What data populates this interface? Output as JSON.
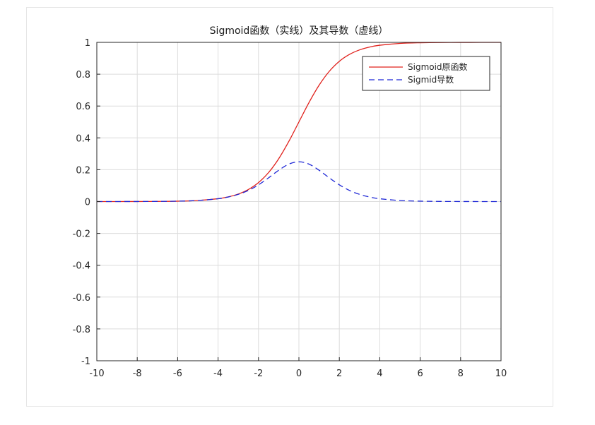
{
  "chart_data": {
    "type": "line",
    "title": "Sigmoid函数（实线）及其导数（虚线）",
    "xlabel": "",
    "ylabel": "",
    "xlim": [
      -10,
      10
    ],
    "ylim": [
      -1,
      1
    ],
    "x_ticks": [
      -10,
      -8,
      -6,
      -4,
      -2,
      0,
      2,
      4,
      6,
      8,
      10
    ],
    "y_ticks": [
      -1,
      -0.8,
      -0.6,
      -0.4,
      -0.2,
      0,
      0.2,
      0.4,
      0.6,
      0.8,
      1
    ],
    "x_tick_labels": [
      "-10",
      "-8",
      "-6",
      "-4",
      "-2",
      "0",
      "2",
      "4",
      "6",
      "8",
      "10"
    ],
    "y_tick_labels": [
      "-1",
      "-0.8",
      "-0.6",
      "-0.4",
      "-0.2",
      "0",
      "0.2",
      "0.4",
      "0.6",
      "0.8",
      "1"
    ],
    "grid": true,
    "legend_position": "top-right",
    "x": [
      -10,
      -9,
      -8,
      -7,
      -6,
      -5,
      -4,
      -3.5,
      -3,
      -2.5,
      -2,
      -1.5,
      -1,
      -0.5,
      0,
      0.5,
      1,
      1.5,
      2,
      2.5,
      3,
      3.5,
      4,
      5,
      6,
      7,
      8,
      9,
      10
    ],
    "series": [
      {
        "name": "Sigmoid原函数",
        "color": "#e0201b",
        "style": "solid",
        "values": [
          4.54e-05,
          0.000123,
          0.000335,
          0.000911,
          0.00247,
          0.00669,
          0.018,
          0.0293,
          0.0474,
          0.0759,
          0.1192,
          0.1824,
          0.2689,
          0.3775,
          0.5,
          0.6225,
          0.7311,
          0.8176,
          0.8808,
          0.9241,
          0.9526,
          0.9707,
          0.982,
          0.9933,
          0.9975,
          0.9991,
          0.9997,
          0.9999,
          1.0
        ]
      },
      {
        "name": "Sigmid导数",
        "color": "#1f28d6",
        "style": "dashed",
        "values": [
          4.54e-05,
          0.000123,
          0.000335,
          0.00091,
          0.00247,
          0.00665,
          0.0177,
          0.0285,
          0.0452,
          0.0701,
          0.105,
          0.1491,
          0.1966,
          0.235,
          0.25,
          0.235,
          0.1966,
          0.1491,
          0.105,
          0.0701,
          0.0452,
          0.0285,
          0.0177,
          0.00665,
          0.00247,
          0.00091,
          0.000335,
          0.000123,
          4.54e-05
        ]
      }
    ]
  }
}
